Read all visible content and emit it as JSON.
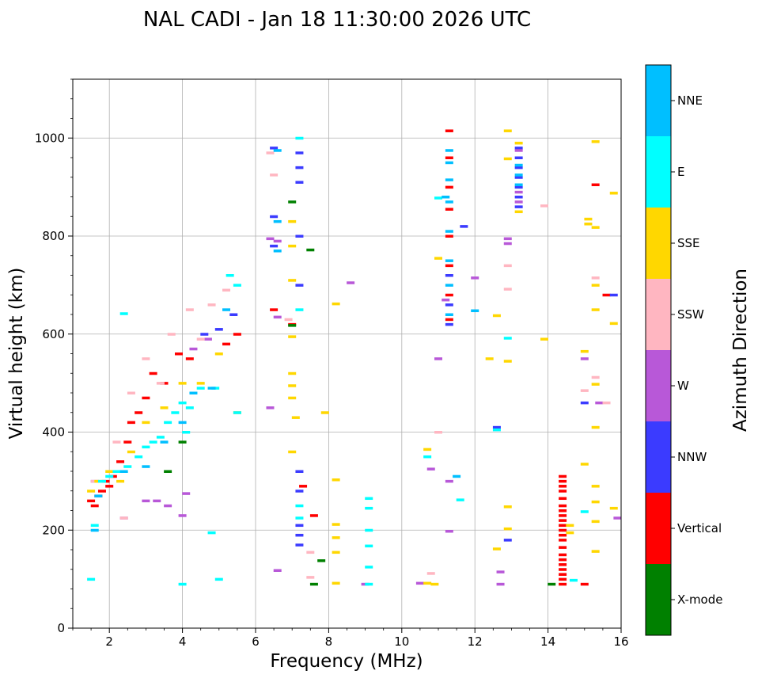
{
  "chart_data": {
    "type": "scatter",
    "title": "NAL CADI - Jan 18 11:30:00 2026 UTC",
    "xlabel": "Frequency (MHz)",
    "ylabel": "Virtual height (km)",
    "xlim": [
      1,
      16
    ],
    "ylim": [
      0,
      1120
    ],
    "xticks": [
      2,
      4,
      6,
      8,
      10,
      12,
      14,
      16
    ],
    "yticks": [
      0,
      200,
      400,
      600,
      800,
      1000
    ],
    "grid": true,
    "colorbar": {
      "label": "Azimuth Direction",
      "categories": [
        {
          "name": "X-mode",
          "color": "#008000"
        },
        {
          "name": "Vertical",
          "color": "#ff0000"
        },
        {
          "name": "NNW",
          "color": "#3b3bff"
        },
        {
          "name": "W",
          "color": "#b858d8"
        },
        {
          "name": "SSW",
          "color": "#ffb6c1"
        },
        {
          "name": "SSE",
          "color": "#ffd700"
        },
        {
          "name": "E",
          "color": "#00ffff"
        },
        {
          "name": "NNE",
          "color": "#00bfff"
        }
      ]
    },
    "series": [
      {
        "name": "Vertical",
        "points": [
          [
            1.5,
            260
          ],
          [
            1.6,
            250
          ],
          [
            1.7,
            270
          ],
          [
            1.8,
            280
          ],
          [
            1.9,
            300
          ],
          [
            2.0,
            290
          ],
          [
            2.1,
            310
          ],
          [
            2.3,
            340
          ],
          [
            2.5,
            380
          ],
          [
            2.6,
            420
          ],
          [
            2.8,
            440
          ],
          [
            3.0,
            470
          ],
          [
            3.2,
            520
          ],
          [
            3.5,
            500
          ],
          [
            3.9,
            560
          ],
          [
            4.2,
            550
          ],
          [
            5.2,
            580
          ],
          [
            5.5,
            600
          ],
          [
            6.5,
            650
          ],
          [
            7.0,
            620
          ],
          [
            7.3,
            290
          ],
          [
            7.6,
            230
          ],
          [
            11.3,
            1015
          ],
          [
            11.3,
            960
          ],
          [
            11.3,
            900
          ],
          [
            11.3,
            855
          ],
          [
            11.3,
            800
          ],
          [
            11.3,
            740
          ],
          [
            11.3,
            680
          ],
          [
            11.3,
            630
          ],
          [
            15.3,
            905
          ],
          [
            15.6,
            680
          ],
          [
            15.0,
            90
          ],
          [
            14.4,
            310
          ],
          [
            14.4,
            300
          ],
          [
            14.4,
            290
          ],
          [
            14.4,
            280
          ],
          [
            14.4,
            265
          ],
          [
            14.4,
            250
          ],
          [
            14.4,
            240
          ],
          [
            14.4,
            230
          ],
          [
            14.4,
            220
          ],
          [
            14.4,
            210
          ],
          [
            14.4,
            200
          ],
          [
            14.4,
            190
          ],
          [
            14.4,
            180
          ],
          [
            14.4,
            165
          ],
          [
            14.4,
            150
          ],
          [
            14.4,
            140
          ],
          [
            14.4,
            130
          ],
          [
            14.4,
            120
          ],
          [
            14.4,
            110
          ],
          [
            14.4,
            100
          ],
          [
            14.4,
            90
          ]
        ]
      },
      {
        "name": "NNW",
        "points": [
          [
            4.6,
            600
          ],
          [
            5.0,
            610
          ],
          [
            5.4,
            640
          ],
          [
            6.5,
            980
          ],
          [
            6.5,
            840
          ],
          [
            6.5,
            780
          ],
          [
            7.2,
            970
          ],
          [
            7.2,
            940
          ],
          [
            7.2,
            910
          ],
          [
            7.2,
            800
          ],
          [
            7.2,
            700
          ],
          [
            7.2,
            320
          ],
          [
            7.2,
            280
          ],
          [
            7.2,
            210
          ],
          [
            7.2,
            190
          ],
          [
            7.2,
            170
          ],
          [
            11.7,
            820
          ],
          [
            11.3,
            720
          ],
          [
            11.3,
            660
          ],
          [
            11.3,
            620
          ],
          [
            12.6,
            410
          ],
          [
            13.2,
            980
          ],
          [
            13.2,
            960
          ],
          [
            13.2,
            940
          ],
          [
            13.2,
            920
          ],
          [
            13.2,
            900
          ],
          [
            13.2,
            880
          ],
          [
            13.2,
            860
          ],
          [
            12.9,
            180
          ],
          [
            15.8,
            680
          ],
          [
            15.0,
            460
          ]
        ]
      },
      {
        "name": "W",
        "points": [
          [
            1.6,
            300
          ],
          [
            2.4,
            225
          ],
          [
            3.0,
            260
          ],
          [
            3.3,
            260
          ],
          [
            3.6,
            250
          ],
          [
            4.0,
            230
          ],
          [
            4.1,
            275
          ],
          [
            4.3,
            570
          ],
          [
            4.7,
            590
          ],
          [
            6.4,
            795
          ],
          [
            6.6,
            790
          ],
          [
            6.4,
            450
          ],
          [
            6.6,
            635
          ],
          [
            6.6,
            118
          ],
          [
            8.6,
            705
          ],
          [
            9.0,
            90
          ],
          [
            10.5,
            92
          ],
          [
            10.8,
            325
          ],
          [
            11.2,
            670
          ],
          [
            11.3,
            300
          ],
          [
            11.3,
            198
          ],
          [
            11.0,
            550
          ],
          [
            12.0,
            715
          ],
          [
            12.7,
            115
          ],
          [
            12.7,
            90
          ],
          [
            12.9,
            795
          ],
          [
            12.9,
            785
          ],
          [
            13.2,
            975
          ],
          [
            13.2,
            890
          ],
          [
            13.2,
            870
          ],
          [
            15.0,
            550
          ],
          [
            15.9,
            225
          ],
          [
            15.4,
            460
          ]
        ]
      },
      {
        "name": "SSW",
        "points": [
          [
            1.6,
            300
          ],
          [
            2.2,
            380
          ],
          [
            2.4,
            225
          ],
          [
            2.6,
            480
          ],
          [
            3.0,
            550
          ],
          [
            3.4,
            500
          ],
          [
            3.7,
            600
          ],
          [
            4.2,
            650
          ],
          [
            4.5,
            590
          ],
          [
            4.8,
            660
          ],
          [
            5.2,
            690
          ],
          [
            5.5,
            440
          ],
          [
            6.4,
            970
          ],
          [
            6.5,
            925
          ],
          [
            6.9,
            630
          ],
          [
            7.5,
            155
          ],
          [
            7.5,
            104
          ],
          [
            10.8,
            112
          ],
          [
            11.0,
            400
          ],
          [
            12.9,
            740
          ],
          [
            12.9,
            692
          ],
          [
            13.9,
            862
          ],
          [
            15.3,
            715
          ],
          [
            15.3,
            512
          ],
          [
            15.0,
            485
          ],
          [
            15.6,
            460
          ]
        ]
      },
      {
        "name": "SSE",
        "points": [
          [
            1.5,
            280
          ],
          [
            1.7,
            300
          ],
          [
            2.0,
            320
          ],
          [
            2.3,
            300
          ],
          [
            2.6,
            360
          ],
          [
            3.0,
            420
          ],
          [
            3.5,
            450
          ],
          [
            4.0,
            500
          ],
          [
            4.5,
            500
          ],
          [
            5.0,
            560
          ],
          [
            5.5,
            440
          ],
          [
            7.0,
            830
          ],
          [
            7.0,
            780
          ],
          [
            7.0,
            710
          ],
          [
            7.0,
            595
          ],
          [
            7.0,
            520
          ],
          [
            7.0,
            495
          ],
          [
            7.0,
            470
          ],
          [
            7.1,
            430
          ],
          [
            7.0,
            360
          ],
          [
            7.9,
            440
          ],
          [
            8.2,
            662
          ],
          [
            8.2,
            303
          ],
          [
            8.2,
            212
          ],
          [
            8.2,
            185
          ],
          [
            8.2,
            155
          ],
          [
            8.2,
            92
          ],
          [
            10.7,
            365
          ],
          [
            10.7,
            92
          ],
          [
            10.9,
            90
          ],
          [
            11.0,
            755
          ],
          [
            12.4,
            550
          ],
          [
            12.6,
            638
          ],
          [
            12.6,
            162
          ],
          [
            12.9,
            1015
          ],
          [
            12.9,
            958
          ],
          [
            12.9,
            545
          ],
          [
            12.9,
            248
          ],
          [
            12.9,
            203
          ],
          [
            13.2,
            990
          ],
          [
            13.2,
            850
          ],
          [
            13.9,
            590
          ],
          [
            14.6,
            210
          ],
          [
            14.6,
            195
          ],
          [
            15.1,
            835
          ],
          [
            15.1,
            825
          ],
          [
            15.3,
            993
          ],
          [
            15.3,
            818
          ],
          [
            15.3,
            700
          ],
          [
            15.3,
            650
          ],
          [
            15.0,
            565
          ],
          [
            15.3,
            498
          ],
          [
            15.3,
            410
          ],
          [
            15.0,
            335
          ],
          [
            15.3,
            290
          ],
          [
            15.3,
            258
          ],
          [
            15.3,
            218
          ],
          [
            15.3,
            157
          ],
          [
            15.8,
            888
          ],
          [
            15.8,
            622
          ],
          [
            15.8,
            245
          ]
        ]
      },
      {
        "name": "E",
        "points": [
          [
            1.5,
            100
          ],
          [
            1.6,
            210
          ],
          [
            1.8,
            300
          ],
          [
            2.0,
            310
          ],
          [
            2.2,
            320
          ],
          [
            2.5,
            330
          ],
          [
            2.8,
            350
          ],
          [
            3.0,
            370
          ],
          [
            3.2,
            380
          ],
          [
            3.4,
            390
          ],
          [
            3.6,
            420
          ],
          [
            3.8,
            440
          ],
          [
            4.0,
            460
          ],
          [
            4.1,
            400
          ],
          [
            4.2,
            450
          ],
          [
            4.5,
            490
          ],
          [
            4.8,
            195
          ],
          [
            4.9,
            490
          ],
          [
            5.0,
            100
          ],
          [
            5.5,
            440
          ],
          [
            5.5,
            700
          ],
          [
            5.3,
            720
          ],
          [
            7.2,
            1000
          ],
          [
            7.2,
            650
          ],
          [
            7.2,
            250
          ],
          [
            7.2,
            225
          ],
          [
            9.1,
            265
          ],
          [
            9.1,
            245
          ],
          [
            9.1,
            200
          ],
          [
            9.1,
            168
          ],
          [
            9.1,
            125
          ],
          [
            9.1,
            90
          ],
          [
            10.7,
            350
          ],
          [
            11.6,
            262
          ],
          [
            12.9,
            592
          ],
          [
            12.6,
            405
          ],
          [
            14.7,
            98
          ],
          [
            15.0,
            238
          ],
          [
            2.4,
            642
          ],
          [
            4.0,
            90
          ],
          [
            11.0,
            878
          ]
        ]
      },
      {
        "name": "NNE",
        "points": [
          [
            1.6,
            200
          ],
          [
            1.7,
            270
          ],
          [
            2.4,
            320
          ],
          [
            3.0,
            330
          ],
          [
            3.5,
            380
          ],
          [
            4.0,
            420
          ],
          [
            4.3,
            480
          ],
          [
            4.8,
            490
          ],
          [
            5.2,
            650
          ],
          [
            6.6,
            975
          ],
          [
            6.6,
            830
          ],
          [
            6.6,
            770
          ],
          [
            11.3,
            975
          ],
          [
            11.3,
            950
          ],
          [
            11.3,
            915
          ],
          [
            11.3,
            870
          ],
          [
            11.3,
            810
          ],
          [
            11.3,
            750
          ],
          [
            11.3,
            700
          ],
          [
            11.3,
            640
          ],
          [
            11.5,
            310
          ],
          [
            12.0,
            648
          ],
          [
            11.2,
            880
          ],
          [
            13.2,
            945
          ],
          [
            13.2,
            925
          ],
          [
            13.2,
            905
          ]
        ]
      },
      {
        "name": "X-mode",
        "points": [
          [
            3.6,
            320
          ],
          [
            4.0,
            380
          ],
          [
            7.0,
            870
          ],
          [
            7.5,
            772
          ],
          [
            7.0,
            618
          ],
          [
            7.8,
            138
          ],
          [
            7.6,
            90
          ],
          [
            14.1,
            90
          ]
        ]
      }
    ]
  }
}
